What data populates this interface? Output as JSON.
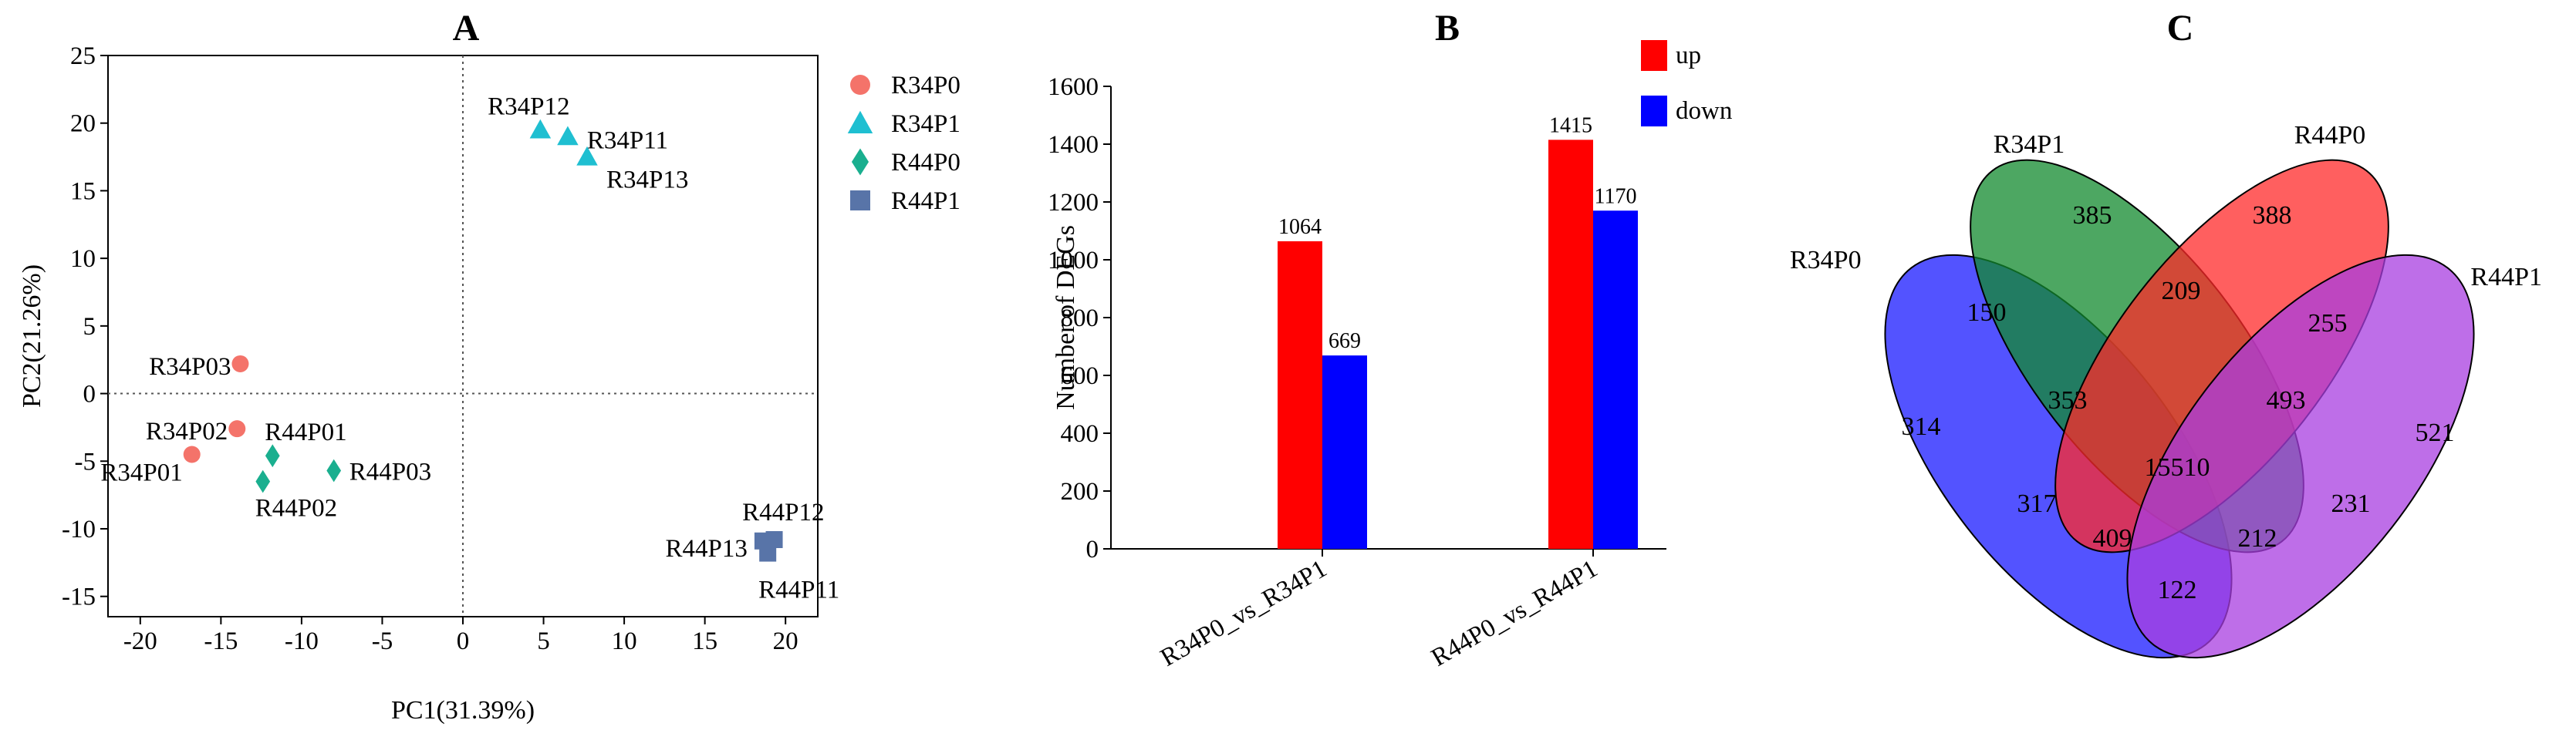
{
  "chart_data": [
    {
      "panel": "A",
      "type": "scatter",
      "title": "A",
      "xlabel": "PC1(31.39%)",
      "ylabel": "PC2(21.26%)",
      "xlim": [
        -22,
        22
      ],
      "ylim": [
        -16.5,
        25
      ],
      "xticks": [
        -20,
        -15,
        -10,
        -5,
        0,
        5,
        10,
        15,
        20
      ],
      "yticks": [
        -15,
        -10,
        -5,
        0,
        5,
        10,
        15,
        20,
        25
      ],
      "reference_lines": {
        "x": 0,
        "y": 0,
        "style": "dotted"
      },
      "legend": [
        {
          "name": "R34P0",
          "marker": "circle",
          "color": "#f4736a"
        },
        {
          "name": "R34P1",
          "marker": "triangle",
          "color": "#1fbfd1"
        },
        {
          "name": "R44P0",
          "marker": "diamond",
          "color": "#1aaf8f"
        },
        {
          "name": "R44P1",
          "marker": "square",
          "color": "#5874a8"
        }
      ],
      "series": [
        {
          "name": "R34P0",
          "points": [
            {
              "label": "R34P03",
              "x": -13.8,
              "y": 2.2
            },
            {
              "label": "R34P02",
              "x": -14.0,
              "y": -2.6
            },
            {
              "label": "R34P01",
              "x": -16.8,
              "y": -4.5
            }
          ]
        },
        {
          "name": "R34P1",
          "points": [
            {
              "label": "R34P12",
              "x": 4.8,
              "y": 19.5
            },
            {
              "label": "R34P11",
              "x": 6.5,
              "y": 19.0
            },
            {
              "label": "R34P13",
              "x": 7.7,
              "y": 17.5
            }
          ]
        },
        {
          "name": "R44P0",
          "points": [
            {
              "label": "R44P01",
              "x": -11.8,
              "y": -4.6
            },
            {
              "label": "R44P03",
              "x": -8.0,
              "y": -5.7
            },
            {
              "label": "R44P02",
              "x": -12.4,
              "y": -6.5
            }
          ]
        },
        {
          "name": "R44P1",
          "points": [
            {
              "label": "R44P12",
              "x": 19.3,
              "y": -10.8
            },
            {
              "label": "R44P13",
              "x": 18.6,
              "y": -10.9
            },
            {
              "label": "R44P11",
              "x": 18.9,
              "y": -11.8
            }
          ]
        }
      ]
    },
    {
      "panel": "B",
      "type": "bar",
      "title": "B",
      "xlabel": "",
      "ylabel": "Number of DEGs",
      "ylim": [
        0,
        1600
      ],
      "yticks": [
        0,
        200,
        400,
        600,
        800,
        1000,
        1200,
        1400,
        1600
      ],
      "categories": [
        "R34P0_vs_R34P1",
        "R44P0_vs_R44P1"
      ],
      "series": [
        {
          "name": "up",
          "color": "#ff0000",
          "values": [
            1064,
            1415
          ]
        },
        {
          "name": "down",
          "color": "#0000ff",
          "values": [
            669,
            1170
          ]
        }
      ],
      "legend_position": "top-right"
    },
    {
      "panel": "C",
      "type": "venn",
      "title": "C",
      "sets": [
        {
          "name": "R34P0",
          "color": "#1a1aff"
        },
        {
          "name": "R34P1",
          "color": "#128a2e"
        },
        {
          "name": "R44P0",
          "color": "#ff2a2a"
        },
        {
          "name": "R44P1",
          "color": "#a83ee0"
        }
      ],
      "regions": [
        {
          "sets": [
            "R34P0"
          ],
          "value": 314
        },
        {
          "sets": [
            "R34P1"
          ],
          "value": 385
        },
        {
          "sets": [
            "R44P0"
          ],
          "value": 388
        },
        {
          "sets": [
            "R44P1"
          ],
          "value": 521
        },
        {
          "sets": [
            "R34P0",
            "R34P1"
          ],
          "value": 150
        },
        {
          "sets": [
            "R34P1",
            "R44P0"
          ],
          "value": 209
        },
        {
          "sets": [
            "R44P0",
            "R44P1"
          ],
          "value": 255
        },
        {
          "sets": [
            "R34P0",
            "R34P1",
            "R44P0"
          ],
          "value": 353
        },
        {
          "sets": [
            "R34P1",
            "R44P0",
            "R44P1"
          ],
          "value": 493
        },
        {
          "sets": [
            "R34P0",
            "R34P1",
            "R44P0",
            "R44P1"
          ],
          "value": 15510
        },
        {
          "sets": [
            "R34P0",
            "R44P0"
          ],
          "value": 317
        },
        {
          "sets": [
            "R34P1",
            "R44P1"
          ],
          "value": 231
        },
        {
          "sets": [
            "R34P0",
            "R44P0",
            "R44P1"
          ],
          "value": 409
        },
        {
          "sets": [
            "R34P0",
            "R34P1",
            "R44P1"
          ],
          "value": 212
        },
        {
          "sets": [
            "R34P0",
            "R44P1"
          ],
          "value": 122
        }
      ]
    }
  ]
}
